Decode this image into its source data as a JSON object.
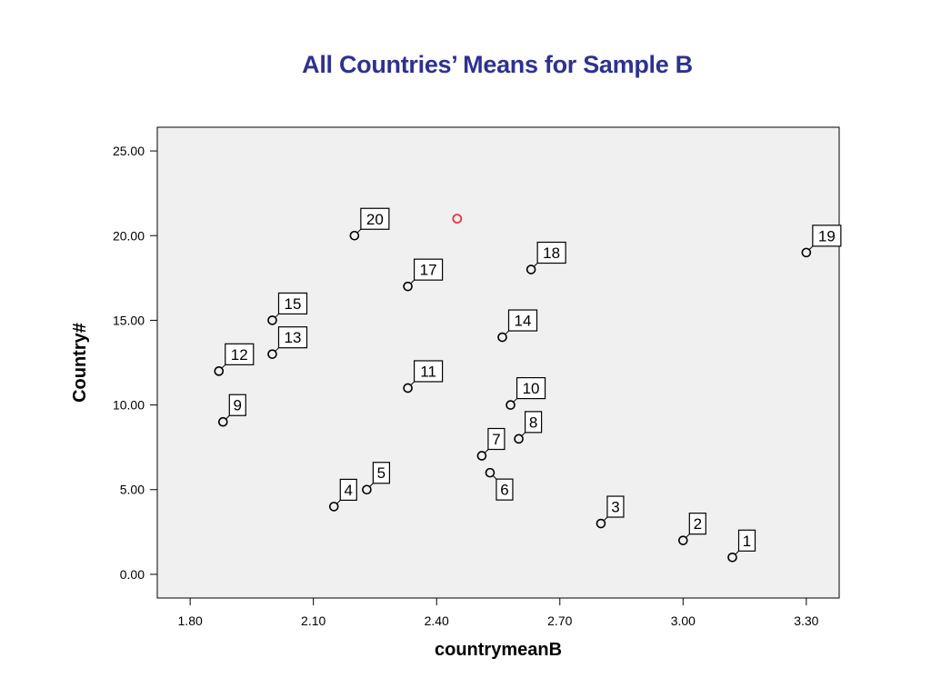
{
  "chart_data": {
    "type": "scatter",
    "title": "All Countries’ Means for Sample B",
    "xlabel": "countrymeanB",
    "ylabel": "Country#",
    "xlim": [
      1.72,
      3.38
    ],
    "ylim": [
      -1.4,
      26.4
    ],
    "xticks": [
      1.8,
      2.1,
      2.4,
      2.7,
      3.0,
      3.3
    ],
    "xtick_labels": [
      "1.80",
      "2.10",
      "2.40",
      "2.70",
      "3.00",
      "3.30"
    ],
    "yticks": [
      0,
      5,
      10,
      15,
      20,
      25
    ],
    "ytick_labels": [
      "0.00",
      "5.00",
      "10.00",
      "15.00",
      "20.00",
      "25.00"
    ],
    "grid": false,
    "plot_background": "#f0f0f0",
    "marker_color": "#000000",
    "series": [
      {
        "points": [
          {
            "label": "1",
            "x": 3.12,
            "y": 1,
            "label_side": "upper-right"
          },
          {
            "label": "2",
            "x": 3.0,
            "y": 2,
            "label_side": "upper-right"
          },
          {
            "label": "3",
            "x": 2.8,
            "y": 3,
            "label_side": "upper-right"
          },
          {
            "label": "4",
            "x": 2.15,
            "y": 4,
            "label_side": "upper-right"
          },
          {
            "label": "5",
            "x": 2.23,
            "y": 5,
            "label_side": "upper-right"
          },
          {
            "label": "6",
            "x": 2.53,
            "y": 6,
            "label_side": "lower-right"
          },
          {
            "label": "7",
            "x": 2.51,
            "y": 7,
            "label_side": "upper-right"
          },
          {
            "label": "8",
            "x": 2.6,
            "y": 8,
            "label_side": "upper-right"
          },
          {
            "label": "9",
            "x": 1.88,
            "y": 9,
            "label_side": "upper-right"
          },
          {
            "label": "10",
            "x": 2.58,
            "y": 10,
            "label_side": "upper-right"
          },
          {
            "label": "11",
            "x": 2.33,
            "y": 11,
            "label_side": "upper-right"
          },
          {
            "label": "12",
            "x": 1.87,
            "y": 12,
            "label_side": "upper-right"
          },
          {
            "label": "13",
            "x": 2.0,
            "y": 13,
            "label_side": "upper-right"
          },
          {
            "label": "14",
            "x": 2.56,
            "y": 14,
            "label_side": "upper-right"
          },
          {
            "label": "15",
            "x": 2.0,
            "y": 15,
            "label_side": "upper-right"
          },
          {
            "label": "17",
            "x": 2.33,
            "y": 17,
            "label_side": "upper-right"
          },
          {
            "label": "18",
            "x": 2.63,
            "y": 18,
            "label_side": "upper-right"
          },
          {
            "label": "19",
            "x": 3.3,
            "y": 19,
            "label_side": "upper-right"
          },
          {
            "label": "20",
            "x": 2.2,
            "y": 20,
            "label_side": "upper-right"
          }
        ]
      }
    ],
    "highlight_point": {
      "x": 2.45,
      "y": 21,
      "color": "#e8333a"
    }
  }
}
